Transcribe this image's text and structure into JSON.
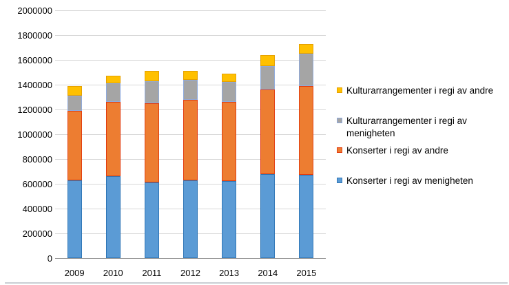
{
  "chart_data": {
    "type": "bar",
    "stacked": true,
    "title": "",
    "xlabel": "",
    "ylabel": "",
    "categories": [
      "2009",
      "2010",
      "2011",
      "2012",
      "2013",
      "2014",
      "2015"
    ],
    "series": [
      {
        "name": "Konserter i regi av menigheten",
        "color": "#5B9BD5",
        "border_color": "#2E75B6",
        "values": [
          630000,
          660000,
          610000,
          630000,
          620000,
          680000,
          670000
        ]
      },
      {
        "name": "Konserter i regi av andre",
        "color": "#ED7D31",
        "border_color": "#E23C0E",
        "values": [
          560000,
          600000,
          640000,
          650000,
          640000,
          680000,
          720000
        ]
      },
      {
        "name": "Kulturarrangementer i regi av menigheten",
        "color": "#A5A5A5",
        "border_color": "#8FAADC",
        "values": [
          120000,
          150000,
          180000,
          160000,
          160000,
          190000,
          260000
        ]
      },
      {
        "name": "Kulturarrangementer i regi av andre",
        "color": "#FFC000",
        "border_color": "#E5A000",
        "values": [
          80000,
          60000,
          80000,
          70000,
          70000,
          90000,
          80000
        ]
      }
    ],
    "totals": [
      1390000,
      1470000,
      1510000,
      1510000,
      1490000,
      1640000,
      1730000
    ],
    "ylim": [
      0,
      2000000
    ],
    "ytick_interval": 200000,
    "yticks": [
      0,
      200000,
      400000,
      600000,
      800000,
      1000000,
      1200000,
      1400000,
      1600000,
      1800000,
      2000000
    ],
    "grid": true,
    "legend_position": "right",
    "legend": [
      {
        "series": "Kulturarrangementer i regi av andre",
        "lines": [
          "Kulturarrangementer i regi av andre"
        ]
      },
      {
        "series": "Kulturarrangementer i regi av menigheten",
        "lines": [
          "Kulturarrangementer i regi av",
          "menigheten"
        ]
      },
      {
        "series": "Konserter i regi av andre",
        "lines": [
          "Konserter i regi av andre"
        ]
      },
      {
        "series": "Konserter i regi av menigheten",
        "lines": [
          "Konserter i regi av menigheten"
        ]
      }
    ]
  }
}
